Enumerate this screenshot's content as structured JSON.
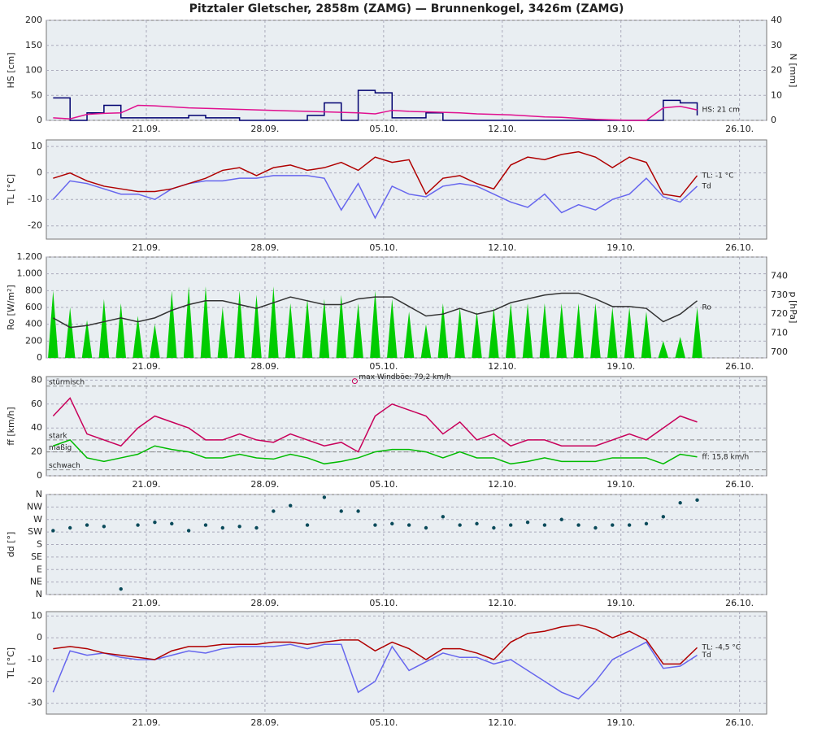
{
  "chart_data": [
    {
      "type": "line",
      "title": "Pitztaler Gletscher, 2858m (ZAMG) — Brunnenkogel, 3426m (ZAMG)",
      "ylabel": "HS [cm]",
      "ylabel_color": "#e0108f",
      "ylim": [
        0,
        200
      ],
      "yticks": [
        0,
        50,
        100,
        150,
        200
      ],
      "y2label": "N [mm]",
      "y2label_color": "#000070",
      "y2lim": [
        0,
        40
      ],
      "y2ticks": [
        0,
        10,
        20,
        30,
        40
      ],
      "xlim": [
        -5.9,
        36.6
      ],
      "xticks": [
        {
          "value": 0,
          "label": "21.09."
        },
        {
          "value": 7,
          "label": "28.09."
        },
        {
          "value": 14,
          "label": "05.10."
        },
        {
          "value": 21,
          "label": "12.10."
        },
        {
          "value": 28,
          "label": "19.10."
        },
        {
          "value": 35,
          "label": "26.10."
        }
      ],
      "x": [
        -5.5,
        -4.5,
        -3.5,
        -2.5,
        -1.5,
        -0.5,
        0.5,
        1.5,
        2.5,
        3.5,
        4.5,
        5.5,
        6.5,
        7.5,
        8.5,
        9.5,
        10.5,
        11.5,
        12.5,
        13.5,
        14.5,
        15.5,
        16.5,
        17.5,
        18.5,
        19.5,
        20.5,
        21.5,
        22.5,
        23.5,
        24.5,
        25.5,
        26.5,
        27.5,
        28.5,
        29.5,
        30.5,
        31.5,
        32.5
      ],
      "series": [
        {
          "style": "step",
          "axis": "y2",
          "color": "#000070",
          "values": [
            9,
            0,
            3,
            6,
            1,
            1,
            1,
            1,
            2,
            1,
            1,
            0,
            0,
            0,
            0,
            2,
            7,
            0,
            12,
            11,
            1,
            1,
            3,
            0,
            0,
            0,
            0,
            0,
            0,
            0,
            0,
            0,
            0,
            0,
            0,
            0,
            8,
            7,
            2
          ]
        },
        {
          "style": "line",
          "color": "#e0108f",
          "end_label": "HS: 21 cm",
          "values": [
            5,
            3,
            12,
            14,
            15,
            30,
            29,
            27,
            25,
            24,
            23,
            22,
            21,
            20,
            19,
            18,
            17,
            16,
            15,
            13,
            20,
            18,
            17,
            16,
            15,
            13,
            12,
            11,
            9,
            7,
            6,
            4,
            2,
            1,
            0,
            0,
            25,
            28,
            21
          ]
        }
      ]
    },
    {
      "type": "line",
      "ylabel": "TL [°C]",
      "ylabel_color": "#b00000",
      "ylim": [
        -25,
        12.5
      ],
      "yticks": [
        -20,
        -10,
        0,
        10
      ],
      "xlim": [
        -5.9,
        36.6
      ],
      "xticks": [
        {
          "value": 0,
          "label": "21.09."
        },
        {
          "value": 7,
          "label": "28.09."
        },
        {
          "value": 14,
          "label": "05.10."
        },
        {
          "value": 21,
          "label": "12.10."
        },
        {
          "value": 28,
          "label": "19.10."
        },
        {
          "value": 35,
          "label": "26.10."
        }
      ],
      "x": [
        -5.5,
        -4.5,
        -3.5,
        -2.5,
        -1.5,
        -0.5,
        0.5,
        1.5,
        2.5,
        3.5,
        4.5,
        5.5,
        6.5,
        7.5,
        8.5,
        9.5,
        10.5,
        11.5,
        12.5,
        13.5,
        14.5,
        15.5,
        16.5,
        17.5,
        18.5,
        19.5,
        20.5,
        21.5,
        22.5,
        23.5,
        24.5,
        25.5,
        26.5,
        27.5,
        28.5,
        29.5,
        30.5,
        31.5,
        32.5
      ],
      "series": [
        {
          "style": "line",
          "color": "#6666ee",
          "end_label": "Td",
          "values": [
            -10,
            -3,
            -4,
            -6,
            -8,
            -8,
            -10,
            -6,
            -4,
            -3,
            -3,
            -2,
            -2,
            -1,
            -1,
            -1,
            -2,
            -14,
            -4,
            -17,
            -5,
            -8,
            -9,
            -5,
            -4,
            -5,
            -8,
            -11,
            -13,
            -8,
            -15,
            -12,
            -14,
            -10,
            -8,
            -2,
            -9,
            -11,
            -5
          ]
        },
        {
          "style": "line",
          "color": "#b00000",
          "end_label": "TL: -1 °C",
          "values": [
            -2,
            0,
            -3,
            -5,
            -6,
            -7,
            -7,
            -6,
            -4,
            -2,
            1,
            2,
            -1,
            2,
            3,
            1,
            2,
            4,
            1,
            6,
            4,
            5,
            -8,
            -2,
            -1,
            -4,
            -6,
            3,
            6,
            5,
            7,
            8,
            6,
            2,
            6,
            4,
            -8,
            -9,
            -1
          ]
        }
      ]
    },
    {
      "type": "line",
      "ylabel": "Ro [W/m²]",
      "ylabel_color": "#00bb00",
      "ylim": [
        0,
        1200
      ],
      "yticks": [
        0,
        200,
        400,
        600,
        800,
        {
          "value": 1000,
          "label": "1.000"
        },
        {
          "value": 1200,
          "label": "1.200"
        }
      ],
      "y2label": "p [hPa]",
      "y2label_color": "#222",
      "y2lim": [
        697,
        750
      ],
      "y2ticks": [
        700,
        710,
        720,
        730,
        740
      ],
      "xlim": [
        -5.9,
        36.6
      ],
      "xticks": [
        {
          "value": 0,
          "label": "21.09."
        },
        {
          "value": 7,
          "label": "28.09."
        },
        {
          "value": 14,
          "label": "05.10."
        },
        {
          "value": 21,
          "label": "12.10."
        },
        {
          "value": 28,
          "label": "19.10."
        },
        {
          "value": 35,
          "label": "26.10."
        }
      ],
      "x": [
        -5.5,
        -4.5,
        -3.5,
        -2.5,
        -1.5,
        -0.5,
        0.5,
        1.5,
        2.5,
        3.5,
        4.5,
        5.5,
        6.5,
        7.5,
        8.5,
        9.5,
        10.5,
        11.5,
        12.5,
        13.5,
        14.5,
        15.5,
        16.5,
        17.5,
        18.5,
        19.5,
        20.5,
        21.5,
        22.5,
        23.5,
        24.5,
        25.5,
        26.5,
        27.5,
        28.5,
        29.5,
        30.5,
        31.5,
        32.5
      ],
      "series": [
        {
          "style": "spikes",
          "color": "#00cc00",
          "end_label": "Ro",
          "values": [
            800,
            600,
            450,
            700,
            650,
            500,
            400,
            800,
            850,
            850,
            600,
            800,
            750,
            850,
            650,
            700,
            700,
            750,
            650,
            800,
            700,
            550,
            400,
            650,
            600,
            550,
            600,
            650,
            650,
            650,
            650,
            650,
            650,
            600,
            600,
            550,
            200,
            250,
            600
          ]
        },
        {
          "style": "line",
          "axis": "y2",
          "color": "#333333",
          "values": [
            718,
            713,
            714,
            716,
            718,
            716,
            718,
            722,
            725,
            727,
            727,
            725,
            723,
            726,
            729,
            727,
            725,
            725,
            728,
            729,
            729,
            724,
            719,
            720,
            723,
            720,
            722,
            726,
            728,
            730,
            731,
            731,
            728,
            724,
            724,
            723,
            716,
            720,
            727
          ]
        }
      ]
    },
    {
      "type": "line",
      "ylabel": "ff [km/h]",
      "ylabel_color": "#00bb00",
      "ylim": [
        0,
        83
      ],
      "yticks": [
        0,
        20,
        40,
        60,
        80
      ],
      "xlim": [
        -5.9,
        36.6
      ],
      "xticks": [
        {
          "value": 0,
          "label": "21.09."
        },
        {
          "value": 7,
          "label": "28.09."
        },
        {
          "value": 14,
          "label": "05.10."
        },
        {
          "value": 21,
          "label": "12.10."
        },
        {
          "value": 28,
          "label": "19.10."
        },
        {
          "value": 35,
          "label": "26.10."
        }
      ],
      "levels": [
        {
          "value": 75,
          "label": "stürmisch"
        },
        {
          "value": 30,
          "label": "stark"
        },
        {
          "value": 20,
          "label": "mäßig"
        },
        {
          "value": 5,
          "label": "schwach"
        }
      ],
      "max_gust": {
        "label": "max Windböe: 79,2 km/h",
        "x": 12.3,
        "value": 79.2,
        "color": "#c8005a"
      },
      "x": [
        -5.5,
        -4.5,
        -3.5,
        -2.5,
        -1.5,
        -0.5,
        0.5,
        1.5,
        2.5,
        3.5,
        4.5,
        5.5,
        6.5,
        7.5,
        8.5,
        9.5,
        10.5,
        11.5,
        12.5,
        13.5,
        14.5,
        15.5,
        16.5,
        17.5,
        18.5,
        19.5,
        20.5,
        21.5,
        22.5,
        23.5,
        24.5,
        25.5,
        26.5,
        27.5,
        28.5,
        29.5,
        30.5,
        31.5,
        32.5
      ],
      "series": [
        {
          "style": "line",
          "color": "#c8005a",
          "values": [
            50,
            65,
            35,
            30,
            25,
            40,
            50,
            45,
            40,
            30,
            30,
            35,
            30,
            28,
            35,
            30,
            25,
            28,
            20,
            50,
            60,
            55,
            50,
            35,
            45,
            30,
            35,
            25,
            30,
            30,
            25,
            25,
            25,
            30,
            35,
            30,
            40,
            50,
            45
          ]
        },
        {
          "style": "line",
          "color": "#00bb00",
          "end_label": "ff: 15,8 km/h",
          "values": [
            25,
            30,
            15,
            12,
            15,
            18,
            25,
            22,
            20,
            15,
            15,
            18,
            15,
            14,
            18,
            15,
            10,
            12,
            15,
            20,
            22,
            22,
            20,
            15,
            20,
            15,
            15,
            10,
            12,
            15,
            12,
            12,
            12,
            15,
            15,
            15,
            10,
            18,
            15.8
          ]
        }
      ]
    },
    {
      "type": "scatter",
      "ylabel": "dd [°]",
      "ylabel_color": "#0a4a5a",
      "ylim": [
        0,
        360
      ],
      "yticks": [
        {
          "value": 0,
          "label": "N"
        },
        {
          "value": 45,
          "label": "NE"
        },
        {
          "value": 90,
          "label": "E"
        },
        {
          "value": 135,
          "label": "SE"
        },
        {
          "value": 180,
          "label": "S"
        },
        {
          "value": 225,
          "label": "SW"
        },
        {
          "value": 270,
          "label": "W"
        },
        {
          "value": 315,
          "label": "NW"
        },
        {
          "value": 360,
          "label": "N"
        }
      ],
      "xlim": [
        -5.9,
        36.6
      ],
      "xticks": [
        {
          "value": 0,
          "label": "21.09."
        },
        {
          "value": 7,
          "label": "28.09."
        },
        {
          "value": 14,
          "label": "05.10."
        },
        {
          "value": 21,
          "label": "12.10."
        },
        {
          "value": 28,
          "label": "19.10."
        },
        {
          "value": 35,
          "label": "26.10."
        }
      ],
      "x": [
        -5.5,
        -4.5,
        -3.5,
        -2.5,
        -1.5,
        -0.5,
        0.5,
        1.5,
        2.5,
        3.5,
        4.5,
        5.5,
        6.5,
        7.5,
        8.5,
        9.5,
        10.5,
        11.5,
        12.5,
        13.5,
        14.5,
        15.5,
        16.5,
        17.5,
        18.5,
        19.5,
        20.5,
        21.5,
        22.5,
        23.5,
        24.5,
        25.5,
        26.5,
        27.5,
        28.5,
        29.5,
        30.5,
        31.5,
        32.5
      ],
      "series": [
        {
          "style": "dots",
          "color": "#0a4a5a",
          "values": [
            230,
            240,
            250,
            245,
            20,
            250,
            260,
            255,
            230,
            250,
            240,
            245,
            240,
            300,
            320,
            250,
            350,
            300,
            300,
            250,
            255,
            250,
            240,
            280,
            250,
            255,
            240,
            250,
            260,
            250,
            270,
            250,
            240,
            250,
            250,
            255,
            280,
            330,
            340
          ]
        }
      ]
    },
    {
      "type": "line",
      "ylabel": "TL [°C]",
      "ylabel_color": "#b00000",
      "ylim": [
        -35,
        12
      ],
      "yticks": [
        -30,
        -20,
        -10,
        0,
        10
      ],
      "xlim": [
        -5.9,
        36.6
      ],
      "xticks": [
        {
          "value": 0,
          "label": "21.09."
        },
        {
          "value": 7,
          "label": "28.09."
        },
        {
          "value": 14,
          "label": "05.10."
        },
        {
          "value": 21,
          "label": "12.10."
        },
        {
          "value": 28,
          "label": "19.10."
        },
        {
          "value": 35,
          "label": "26.10."
        }
      ],
      "x": [
        -5.5,
        -4.5,
        -3.5,
        -2.5,
        -1.5,
        -0.5,
        0.5,
        1.5,
        2.5,
        3.5,
        4.5,
        5.5,
        6.5,
        7.5,
        8.5,
        9.5,
        10.5,
        11.5,
        12.5,
        13.5,
        14.5,
        15.5,
        16.5,
        17.5,
        18.5,
        19.5,
        20.5,
        21.5,
        22.5,
        23.5,
        24.5,
        25.5,
        26.5,
        27.5,
        28.5,
        29.5,
        30.5,
        31.5,
        32.5
      ],
      "series": [
        {
          "style": "line",
          "color": "#6666ee",
          "end_label": "Td",
          "values": [
            -25,
            -6,
            -8,
            -7,
            -9,
            -10,
            -10,
            -8,
            -6,
            -7,
            -5,
            -4,
            -4,
            -4,
            -3,
            -5,
            -3,
            -3,
            -25,
            -20,
            -4,
            -15,
            -11,
            -7,
            -9,
            -9,
            -12,
            -10,
            -15,
            -20,
            -25,
            -28,
            -20,
            -10,
            -6,
            -2,
            -14,
            -13,
            -8
          ]
        },
        {
          "style": "line",
          "color": "#b00000",
          "end_label": "TL: -4,5 °C",
          "values": [
            -5,
            -4,
            -5,
            -7,
            -8,
            -9,
            -10,
            -6,
            -4,
            -4,
            -3,
            -3,
            -3,
            -2,
            -2,
            -3,
            -2,
            -1,
            -1,
            -6,
            -2,
            -5,
            -10,
            -5,
            -5,
            -7,
            -10,
            -2,
            2,
            3,
            5,
            6,
            4,
            0,
            3,
            -1,
            -12,
            -12,
            -4.5
          ]
        }
      ]
    }
  ]
}
